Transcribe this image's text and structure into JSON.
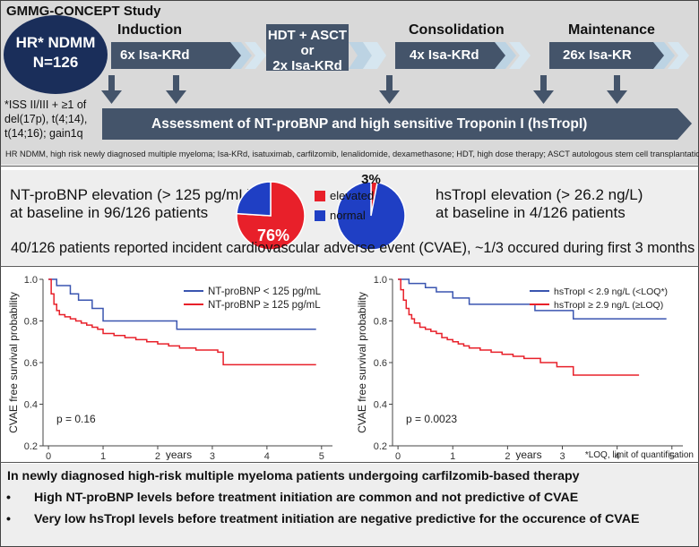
{
  "study": {
    "title": "GMMG-CONCEPT Study",
    "population_line1": "HR* NDMM",
    "population_line2": "N=126",
    "footnote_lines": [
      "*ISS II/III + ≥1 of",
      "del(17p), t(4;14),",
      "t(14;16); gain1q"
    ],
    "phases": [
      {
        "name": "Induction",
        "regimen": "6x Isa-KRd"
      },
      {
        "name": "",
        "regimen": "HDT + ASCT\nor\n2x Isa-KRd"
      },
      {
        "name": "Consolidation",
        "regimen": "4x Isa-KRd"
      },
      {
        "name": "Maintenance",
        "regimen": "26x Isa-KR"
      }
    ],
    "hdt_lines": [
      "HDT + ASCT",
      "or",
      "2x Isa-KRd"
    ],
    "assessment": "Assessment of  NT-proBNP and high sensitive Troponin I (hsTropI)",
    "abbreviations": "HR NDMM, high risk newly diagnosed multiple myeloma; Isa-KRd, isatuximab, carfilzomib, lenalidomide, dexamethasone; HDT, high dose therapy; ASCT autologous stem cell transplantation"
  },
  "baseline": {
    "ntprobnp_line1": "NT-proBNP elevation (> 125 pg/mL)",
    "ntprobnp_line2": "at baseline in 96/126 patients",
    "hstropi_line1": "hsTropI elevation (> 26.2 ng/L)",
    "hstropi_line2": "at baseline in 4/126 patients",
    "cvae_summary": "40/126 patients reported incident cardiovascular adverse event (CVAE), ~1/3 occured during first 3 months",
    "legend": [
      {
        "label": "elevated",
        "color": "#e8202a"
      },
      {
        "label": "normal",
        "color": "#1f3fc4"
      }
    ]
  },
  "chart_data": [
    {
      "type": "pie",
      "title": "NT-proBNP at baseline",
      "labels": [
        "elevated",
        "normal"
      ],
      "values": [
        76,
        24
      ],
      "data_label": "76%",
      "colors": [
        "#e8202a",
        "#1f3fc4"
      ]
    },
    {
      "type": "pie",
      "title": "hsTropI at baseline",
      "labels": [
        "elevated",
        "normal"
      ],
      "values": [
        3,
        97
      ],
      "data_label": "3%",
      "colors": [
        "#e8202a",
        "#1f3fc4"
      ]
    },
    {
      "type": "line",
      "step": true,
      "ylabel": "CVAE free survival probability",
      "xlabel": "years",
      "xlim": [
        -0.1,
        5.2
      ],
      "ylim": [
        0.2,
        1.0
      ],
      "xticks": [
        0,
        1,
        2,
        3,
        4,
        5
      ],
      "yticks": [
        0.2,
        0.4,
        0.6,
        0.8,
        1.0
      ],
      "ytick_labels": [
        "0.2",
        "0.4",
        "0.6",
        "0.8",
        "1.0"
      ],
      "annotation": "p = 0.16",
      "series": [
        {
          "name": "NT-proBNP < 125 pg/mL",
          "color": "#3a55b0",
          "x": [
            0,
            0.15,
            0.4,
            0.55,
            0.8,
            1.0,
            2.35,
            4.9
          ],
          "y": [
            1.0,
            0.97,
            0.93,
            0.9,
            0.86,
            0.8,
            0.76,
            0.76
          ]
        },
        {
          "name": "NT-proBNP ≥ 125 pg/mL",
          "color": "#e8202a",
          "x": [
            0,
            0.05,
            0.1,
            0.15,
            0.2,
            0.3,
            0.4,
            0.5,
            0.6,
            0.7,
            0.8,
            0.9,
            1.0,
            1.2,
            1.4,
            1.6,
            1.8,
            2.0,
            2.2,
            2.4,
            2.7,
            3.1,
            3.2,
            4.9
          ],
          "y": [
            1.0,
            0.93,
            0.88,
            0.85,
            0.83,
            0.82,
            0.81,
            0.8,
            0.79,
            0.78,
            0.77,
            0.76,
            0.74,
            0.73,
            0.72,
            0.71,
            0.7,
            0.69,
            0.68,
            0.67,
            0.66,
            0.65,
            0.59,
            0.59
          ]
        }
      ]
    },
    {
      "type": "line",
      "step": true,
      "ylabel": "CVAE free survival probability",
      "xlabel": "years",
      "xlim": [
        -0.1,
        5.2
      ],
      "ylim": [
        0.2,
        1.0
      ],
      "xticks": [
        0,
        1,
        2,
        3,
        4,
        5
      ],
      "yticks": [
        0.2,
        0.4,
        0.6,
        0.8,
        1.0
      ],
      "ytick_labels": [
        "0.2",
        "0.4",
        "0.6",
        "0.8",
        "1.0"
      ],
      "annotation": "p = 0.0023",
      "footnote": "*LOQ, limit of quantification",
      "series": [
        {
          "name": "hsTropI < 2.9 ng/L (<LOQ*)",
          "color": "#3a55b0",
          "x": [
            0,
            0.2,
            0.5,
            0.7,
            1.0,
            1.3,
            2.5,
            3.2,
            4.9
          ],
          "y": [
            1.0,
            0.98,
            0.96,
            0.94,
            0.91,
            0.88,
            0.85,
            0.81,
            0.81
          ]
        },
        {
          "name": "hsTropI ≥ 2.9 ng/L (≥LOQ)",
          "color": "#e8202a",
          "x": [
            0,
            0.05,
            0.1,
            0.15,
            0.2,
            0.25,
            0.3,
            0.4,
            0.5,
            0.6,
            0.7,
            0.8,
            0.9,
            1.0,
            1.1,
            1.2,
            1.3,
            1.5,
            1.7,
            1.9,
            2.1,
            2.3,
            2.6,
            2.9,
            3.2,
            4.4
          ],
          "y": [
            1.0,
            0.95,
            0.9,
            0.86,
            0.83,
            0.81,
            0.79,
            0.77,
            0.76,
            0.75,
            0.74,
            0.72,
            0.71,
            0.7,
            0.69,
            0.68,
            0.67,
            0.66,
            0.65,
            0.64,
            0.63,
            0.62,
            0.6,
            0.58,
            0.54,
            0.54
          ]
        }
      ]
    }
  ],
  "conclusion": {
    "headline": "In newly diagnosed high-risk multiple myeloma patients undergoing carfilzomib-based therapy",
    "bullets": [
      "High NT-proBNP levels before treatment initiation are common and not predictive of CVAE",
      "Very low hsTropI levels before treatment initiation are negative predictive for the occurence of CVAE"
    ],
    "bullet_glyph": "•"
  }
}
